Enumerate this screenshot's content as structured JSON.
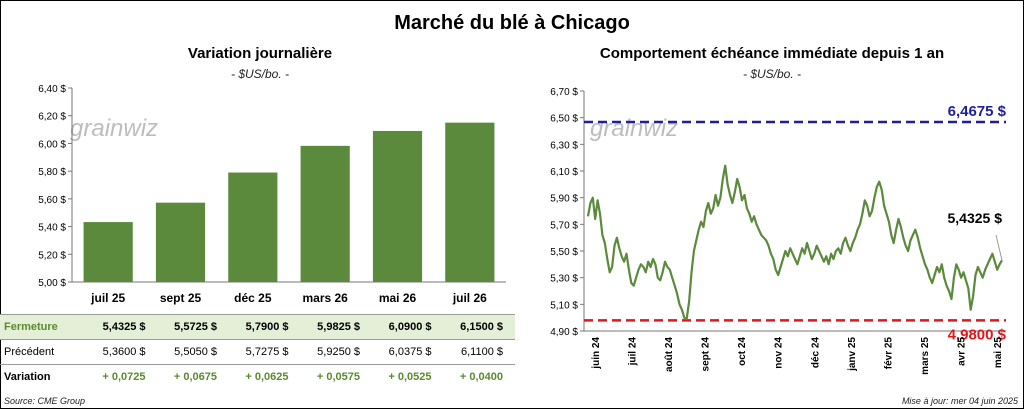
{
  "title": "Marché du blé à Chicago",
  "left_chart": {
    "title": "Variation journalière",
    "unit": "- $US/bo. -"
  },
  "right_chart": {
    "title": "Comportement échéance immédiate depuis 1 an",
    "unit": "- $US/bo. -"
  },
  "watermark": "grainwiz",
  "table": {
    "rows": [
      {
        "label": "Fermeture",
        "values": [
          "5,4325 $",
          "5,5725 $",
          "5,7900 $",
          "5,9825 $",
          "6,0900 $",
          "6,1500 $"
        ]
      },
      {
        "label": "Précédent",
        "values": [
          "5,3600 $",
          "5,5050 $",
          "5,7275 $",
          "5,9250 $",
          "6,0375 $",
          "6,1100 $"
        ]
      },
      {
        "label": "Variation",
        "values": [
          "+ 0,0725",
          "+ 0,0675",
          "+ 0,0625",
          "+ 0,0575",
          "+ 0,0525",
          "+ 0,0400"
        ]
      }
    ]
  },
  "source": "Source: CME Group",
  "updated": "Mise à jour: mer 04 juin 2025",
  "colors": {
    "bar": "#5b8a3c",
    "line": "#5b8a3c",
    "max_line": "#1f1f9e",
    "min_line": "#e0161b"
  },
  "chart_data": [
    {
      "type": "bar",
      "title": "Variation journalière",
      "ylabel": "- $US/bo. -",
      "categories": [
        "juil 25",
        "sept 25",
        "déc 25",
        "mars 26",
        "mai 26",
        "juil 26"
      ],
      "values": [
        5.4325,
        5.5725,
        5.79,
        5.9825,
        6.09,
        6.15
      ],
      "ylim": [
        5.0,
        6.4
      ],
      "yticks": [
        "5,00 $",
        "5,20 $",
        "5,40 $",
        "5,60 $",
        "5,80 $",
        "6,00 $",
        "6,20 $",
        "6,40 $"
      ],
      "grid": false
    },
    {
      "type": "line",
      "title": "Comportement échéance immédiate depuis 1 an",
      "ylabel": "- $US/bo. -",
      "ylim": [
        4.9,
        6.7
      ],
      "yticks": [
        "4,90 $",
        "5,10 $",
        "5,30 $",
        "5,50 $",
        "5,70 $",
        "5,90 $",
        "6,10 $",
        "6,30 $",
        "6,50 $",
        "6,70 $"
      ],
      "xticks": [
        "juin 24",
        "juil 24",
        "août 24",
        "sept 24",
        "oct 24",
        "nov 24",
        "déc 24",
        "janv 25",
        "févr 25",
        "mars 25",
        "avr 25",
        "mai 25"
      ],
      "reference_lines": [
        {
          "value": 6.4675,
          "label": "6,4675 $"
        },
        {
          "value": 4.98,
          "label": "4,9800 $"
        }
      ],
      "last_label": "5,4325 $",
      "series": [
        {
          "values": [
            5.76,
            5.86,
            5.9,
            5.74,
            5.88,
            5.78,
            5.62,
            5.56,
            5.44,
            5.34,
            5.38,
            5.54,
            5.6,
            5.52,
            5.46,
            5.42,
            5.48,
            5.36,
            5.26,
            5.24,
            5.3,
            5.36,
            5.4,
            5.38,
            5.34,
            5.42,
            5.38,
            5.44,
            5.4,
            5.3,
            5.28,
            5.34,
            5.42,
            5.38,
            5.36,
            5.3,
            5.24,
            5.18,
            5.1,
            5.06,
            5.0,
            4.99,
            5.12,
            5.34,
            5.5,
            5.58,
            5.66,
            5.72,
            5.68,
            5.8,
            5.86,
            5.78,
            5.82,
            5.92,
            5.84,
            5.9,
            6.04,
            6.14,
            6.0,
            5.92,
            5.86,
            5.94,
            6.04,
            5.98,
            5.88,
            5.92,
            5.82,
            5.78,
            5.72,
            5.76,
            5.7,
            5.66,
            5.62,
            5.6,
            5.58,
            5.54,
            5.48,
            5.44,
            5.36,
            5.32,
            5.38,
            5.44,
            5.5,
            5.46,
            5.52,
            5.48,
            5.44,
            5.4,
            5.46,
            5.52,
            5.48,
            5.56,
            5.5,
            5.44,
            5.48,
            5.54,
            5.5,
            5.46,
            5.42,
            5.46,
            5.4,
            5.48,
            5.44,
            5.5,
            5.52,
            5.48,
            5.56,
            5.6,
            5.54,
            5.5,
            5.56,
            5.6,
            5.66,
            5.7,
            5.78,
            5.88,
            5.84,
            5.76,
            5.8,
            5.9,
            5.98,
            6.02,
            5.96,
            5.84,
            5.78,
            5.72,
            5.62,
            5.56,
            5.66,
            5.74,
            5.68,
            5.6,
            5.54,
            5.5,
            5.58,
            5.62,
            5.66,
            5.6,
            5.52,
            5.46,
            5.4,
            5.36,
            5.3,
            5.26,
            5.32,
            5.38,
            5.34,
            5.4,
            5.3,
            5.24,
            5.2,
            5.14,
            5.3,
            5.4,
            5.36,
            5.3,
            5.34,
            5.28,
            5.22,
            5.06,
            5.16,
            5.32,
            5.38,
            5.34,
            5.3,
            5.36,
            5.4,
            5.44,
            5.48,
            5.42,
            5.36,
            5.4,
            5.43
          ]
        }
      ]
    }
  ]
}
